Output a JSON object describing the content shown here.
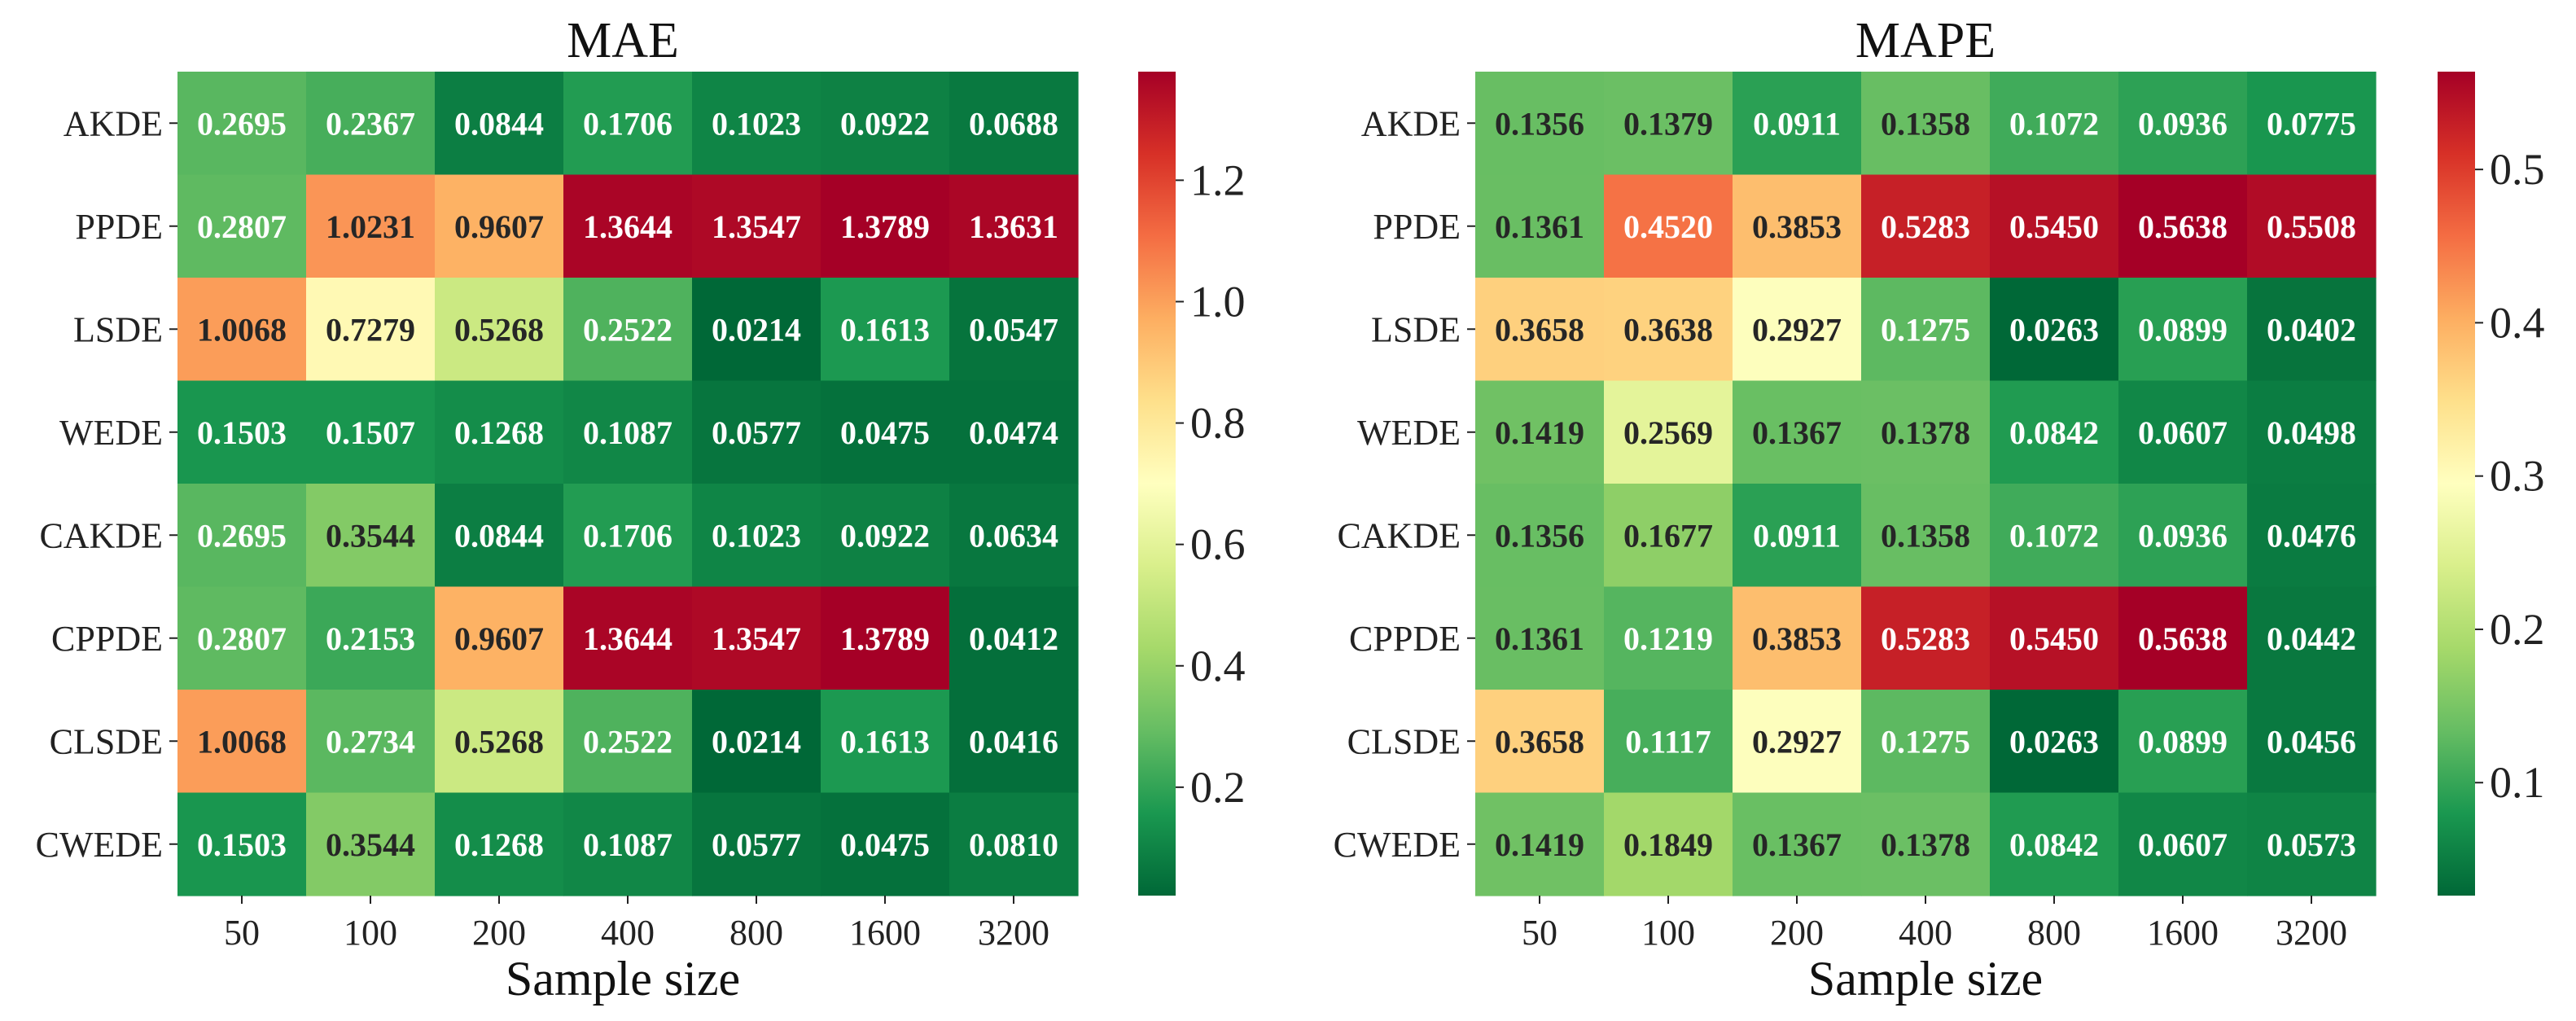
{
  "chart_data": [
    {
      "type": "heatmap",
      "title": "MAE",
      "xlabel": "Sample size",
      "ylabel": "",
      "x_categories": [
        "50",
        "100",
        "200",
        "400",
        "800",
        "1600",
        "3200"
      ],
      "y_categories": [
        "AKDE",
        "PPDE",
        "LSDE",
        "WEDE",
        "CAKDE",
        "CPPDE",
        "CLSDE",
        "CWEDE"
      ],
      "values": [
        [
          0.2695,
          0.2367,
          0.0844,
          0.1706,
          0.1023,
          0.0922,
          0.0688
        ],
        [
          0.2807,
          1.0231,
          0.9607,
          1.3644,
          1.3547,
          1.3789,
          1.3631
        ],
        [
          1.0068,
          0.7279,
          0.5268,
          0.2522,
          0.0214,
          0.1613,
          0.0547
        ],
        [
          0.1503,
          0.1507,
          0.1268,
          0.1087,
          0.0577,
          0.0475,
          0.0474
        ],
        [
          0.2695,
          0.3544,
          0.0844,
          0.1706,
          0.1023,
          0.0922,
          0.0634
        ],
        [
          0.2807,
          0.2153,
          0.9607,
          1.3644,
          1.3547,
          1.3789,
          0.0412
        ],
        [
          1.0068,
          0.2734,
          0.5268,
          0.2522,
          0.0214,
          0.1613,
          0.0416
        ],
        [
          0.1503,
          0.3544,
          0.1268,
          0.1087,
          0.0577,
          0.0475,
          0.081
        ]
      ],
      "labels": [
        [
          "0.2695",
          "0.2367",
          "0.0844",
          "0.1706",
          "0.1023",
          "0.0922",
          "0.0688"
        ],
        [
          "0.2807",
          "1.0231",
          "0.9607",
          "1.3644",
          "1.3547",
          "1.3789",
          "1.3631"
        ],
        [
          "1.0068",
          "0.7279",
          "0.5268",
          "0.2522",
          "0.0214",
          "0.1613",
          "0.0547"
        ],
        [
          "0.1503",
          "0.1507",
          "0.1268",
          "0.1087",
          "0.0577",
          "0.0475",
          "0.0474"
        ],
        [
          "0.2695",
          "0.3544",
          "0.0844",
          "0.1706",
          "0.1023",
          "0.0922",
          "0.0634"
        ],
        [
          "0.2807",
          "0.2153",
          "0.9607",
          "1.3644",
          "1.3547",
          "1.3789",
          "0.0412"
        ],
        [
          "1.0068",
          "0.2734",
          "0.5268",
          "0.2522",
          "0.0214",
          "0.1613",
          "0.0416"
        ],
        [
          "0.1503",
          "0.3544",
          "0.1268",
          "0.1087",
          "0.0577",
          "0.0475",
          "0.0810"
        ]
      ],
      "colorbar": {
        "vmin": 0.0214,
        "vmax": 1.3789,
        "ticks": [
          0.2,
          0.4,
          0.6,
          0.8,
          1.0,
          1.2
        ],
        "tick_labels": [
          "0.2",
          "0.4",
          "0.6",
          "0.8",
          "1.0",
          "1.2"
        ],
        "colormap": "RdYlGn_r"
      }
    },
    {
      "type": "heatmap",
      "title": "MAPE",
      "xlabel": "Sample size",
      "ylabel": "",
      "x_categories": [
        "50",
        "100",
        "200",
        "400",
        "800",
        "1600",
        "3200"
      ],
      "y_categories": [
        "AKDE",
        "PPDE",
        "LSDE",
        "WEDE",
        "CAKDE",
        "CPPDE",
        "CLSDE",
        "CWEDE"
      ],
      "values": [
        [
          0.1356,
          0.1379,
          0.0911,
          0.1358,
          0.1072,
          0.0936,
          0.0775
        ],
        [
          0.1361,
          0.452,
          0.3853,
          0.5283,
          0.545,
          0.5638,
          0.5508
        ],
        [
          0.3658,
          0.3638,
          0.2927,
          0.1275,
          0.0263,
          0.0899,
          0.0402
        ],
        [
          0.1419,
          0.2569,
          0.1367,
          0.1378,
          0.0842,
          0.0607,
          0.0498
        ],
        [
          0.1356,
          0.1677,
          0.0911,
          0.1358,
          0.1072,
          0.0936,
          0.0476
        ],
        [
          0.1361,
          0.1219,
          0.3853,
          0.5283,
          0.545,
          0.5638,
          0.0442
        ],
        [
          0.3658,
          0.1117,
          0.2927,
          0.1275,
          0.0263,
          0.0899,
          0.0456
        ],
        [
          0.1419,
          0.1849,
          0.1367,
          0.1378,
          0.0842,
          0.0607,
          0.0573
        ]
      ],
      "labels": [
        [
          "0.1356",
          "0.1379",
          "0.0911",
          "0.1358",
          "0.1072",
          "0.0936",
          "0.0775"
        ],
        [
          "0.1361",
          "0.4520",
          "0.3853",
          "0.5283",
          "0.5450",
          "0.5638",
          "0.5508"
        ],
        [
          "0.3658",
          "0.3638",
          "0.2927",
          "0.1275",
          "0.0263",
          "0.0899",
          "0.0402"
        ],
        [
          "0.1419",
          "0.2569",
          "0.1367",
          "0.1378",
          "0.0842",
          "0.0607",
          "0.0498"
        ],
        [
          "0.1356",
          "0.1677",
          "0.0911",
          "0.1358",
          "0.1072",
          "0.0936",
          "0.0476"
        ],
        [
          "0.1361",
          "0.1219",
          "0.3853",
          "0.5283",
          "0.5450",
          "0.5638",
          "0.0442"
        ],
        [
          "0.3658",
          "0.1117",
          "0.2927",
          "0.1275",
          "0.0263",
          "0.0899",
          "0.0456"
        ],
        [
          "0.1419",
          "0.1849",
          "0.1367",
          "0.1378",
          "0.0842",
          "0.0607",
          "0.0573"
        ]
      ],
      "colorbar": {
        "vmin": 0.0263,
        "vmax": 0.5638,
        "ticks": [
          0.1,
          0.2,
          0.3,
          0.4,
          0.5
        ],
        "tick_labels": [
          "0.1",
          "0.2",
          "0.3",
          "0.4",
          "0.5"
        ],
        "colormap": "RdYlGn_r"
      }
    }
  ]
}
